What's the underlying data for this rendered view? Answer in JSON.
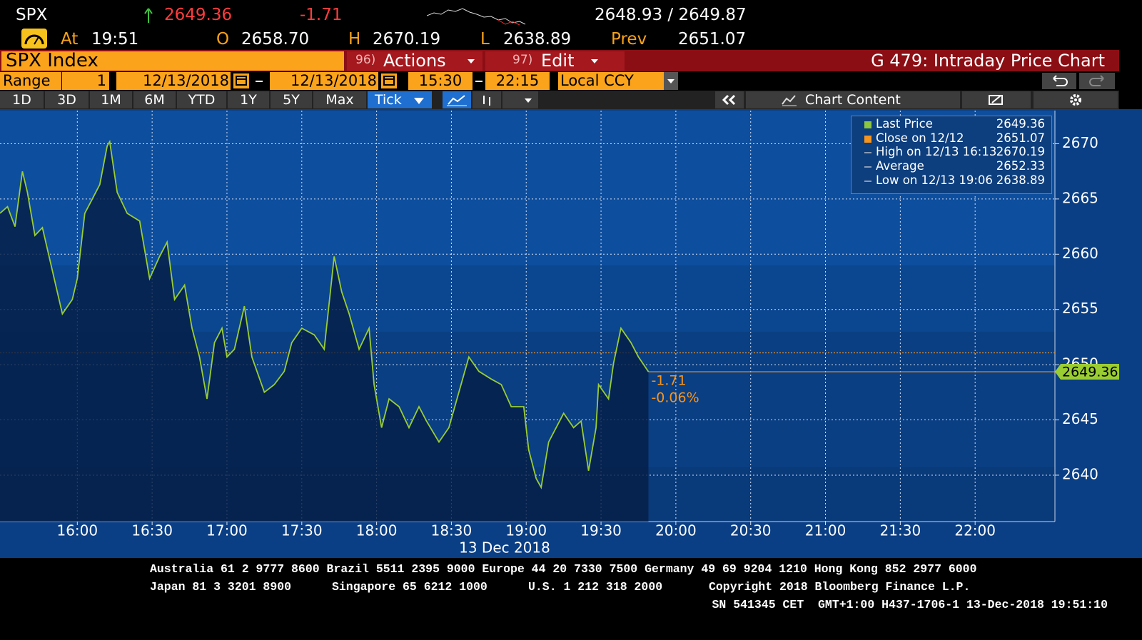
{
  "header": {
    "ticker": "SPX",
    "last": "2649.36",
    "change": "-1.71",
    "bid_ask": "2648.93 / 2649.87",
    "at_label": "At",
    "time": "19:51",
    "open_label": "O",
    "open": "2658.70",
    "high_label": "H",
    "high": "2670.19",
    "low_label": "L",
    "low": "2638.89",
    "prev_label": "Prev",
    "prev": "2651.07"
  },
  "toolbar": {
    "security": "SPX Index",
    "actions_num": "96)",
    "actions": "Actions",
    "edit_num": "97)",
    "edit": "Edit",
    "function": "G 479: Intraday Price Chart"
  },
  "range": {
    "label": "Range",
    "value": "1",
    "start_date": "12/13/2018",
    "end_date": "12/13/2018",
    "start_time": "15:30",
    "end_time": "22:15",
    "currency": "Local CCY"
  },
  "periods": [
    "1D",
    "3D",
    "1M",
    "6M",
    "YTD",
    "1Y",
    "5Y",
    "Max",
    "Tick"
  ],
  "chart_content": "Chart Content",
  "chart_data": {
    "type": "line",
    "xlabel": "13 Dec 2018",
    "x": [
      "15:29",
      "15:32",
      "15:35",
      "15:38",
      "15:40",
      "15:43",
      "15:46",
      "15:50",
      "15:54",
      "15:58",
      "16:00",
      "16:03",
      "16:06",
      "16:09",
      "16:12",
      "16:13",
      "16:16",
      "16:20",
      "16:25",
      "16:29",
      "16:33",
      "16:36",
      "16:39",
      "16:43",
      "16:46",
      "16:49",
      "16:52",
      "16:55",
      "16:58",
      "17:00",
      "17:03",
      "17:07",
      "17:10",
      "17:15",
      "17:19",
      "17:23",
      "17:26",
      "17:30",
      "17:35",
      "17:39",
      "17:43",
      "17:46",
      "17:49",
      "17:53",
      "17:57",
      "17:59",
      "18:02",
      "18:05",
      "18:09",
      "18:13",
      "18:17",
      "18:20",
      "18:25",
      "18:29",
      "18:33",
      "18:37",
      "18:41",
      "18:46",
      "18:50",
      "18:54",
      "18:59",
      "19:01",
      "19:04",
      "19:06",
      "19:09",
      "19:15",
      "19:19",
      "19:22",
      "19:25",
      "19:28",
      "19:29",
      "19:33",
      "19:35",
      "19:38",
      "19:42",
      "19:45",
      "19:49"
    ],
    "series": [
      {
        "name": "Last Price",
        "color": "#9acd32",
        "values": [
          2663.7,
          2664.3,
          2662.5,
          2667.5,
          2665.6,
          2661.7,
          2662.4,
          2658.5,
          2654.6,
          2655.9,
          2657.8,
          2663.7,
          2665.0,
          2666.3,
          2669.8,
          2670.19,
          2665.6,
          2663.7,
          2663.0,
          2657.8,
          2659.8,
          2661.1,
          2655.9,
          2657.2,
          2653.3,
          2650.7,
          2646.9,
          2652.0,
          2653.3,
          2650.7,
          2651.4,
          2655.3,
          2650.7,
          2647.5,
          2648.2,
          2649.4,
          2652.0,
          2653.3,
          2652.7,
          2651.4,
          2659.8,
          2656.6,
          2654.6,
          2651.4,
          2653.3,
          2648.2,
          2644.3,
          2646.9,
          2646.2,
          2644.3,
          2646.2,
          2644.9,
          2643.0,
          2644.3,
          2647.5,
          2650.7,
          2649.4,
          2648.7,
          2648.2,
          2646.2,
          2646.2,
          2642.3,
          2639.7,
          2638.89,
          2643.0,
          2645.6,
          2644.3,
          2644.9,
          2640.4,
          2644.3,
          2648.2,
          2646.9,
          2650.1,
          2653.3,
          2652.0,
          2650.7,
          2649.36
        ]
      }
    ],
    "xlim": [
      "15:29",
      "22:32"
    ],
    "xticks": [
      "16:00",
      "16:30",
      "17:00",
      "17:30",
      "18:00",
      "18:30",
      "19:00",
      "19:30",
      "20:00",
      "20:30",
      "21:00",
      "21:30",
      "22:00"
    ],
    "ylim": [
      2635.8,
      2673.0
    ],
    "yticks": [
      2640,
      2645,
      2650,
      2655,
      2660,
      2665,
      2670
    ],
    "grid": true,
    "close_value": 2651.07,
    "close_color": "#f7941d",
    "last_value": 2649.36,
    "change": "-1.71",
    "change_pct": "-0.06%",
    "legend": [
      {
        "label": "Last Price",
        "value": 2649.36,
        "color": "#8dc63f"
      },
      {
        "label": "Close on 12/12",
        "value": 2651.07,
        "color": "#f7941d"
      },
      {
        "label": "High on 12/13 16:13",
        "value": 2670.19,
        "color": "#8a9bb5"
      },
      {
        "label": "Average",
        "value": 2652.33,
        "color": "#8a9bb5"
      },
      {
        "label": "Low on 12/13 19:06",
        "value": 2638.89,
        "color": "#8a9bb5"
      }
    ]
  },
  "footer": {
    "line1": "Australia 61 2 9777 8600 Brazil 5511 2395 9000 Europe 44 20 7330 7500 Germany 49 69 9204 1210 Hong Kong 852 2977 6000",
    "japan": "Japan 81 3 3201 8900",
    "singapore": "Singapore 65 6212 1000",
    "us": "U.S. 1 212 318 2000",
    "copyright": "Copyright 2018 Bloomberg Finance L.P.",
    "line3": "SN 541345 CET  GMT+1:00 H437-1706-1 13-Dec-2018 19:51:10"
  }
}
